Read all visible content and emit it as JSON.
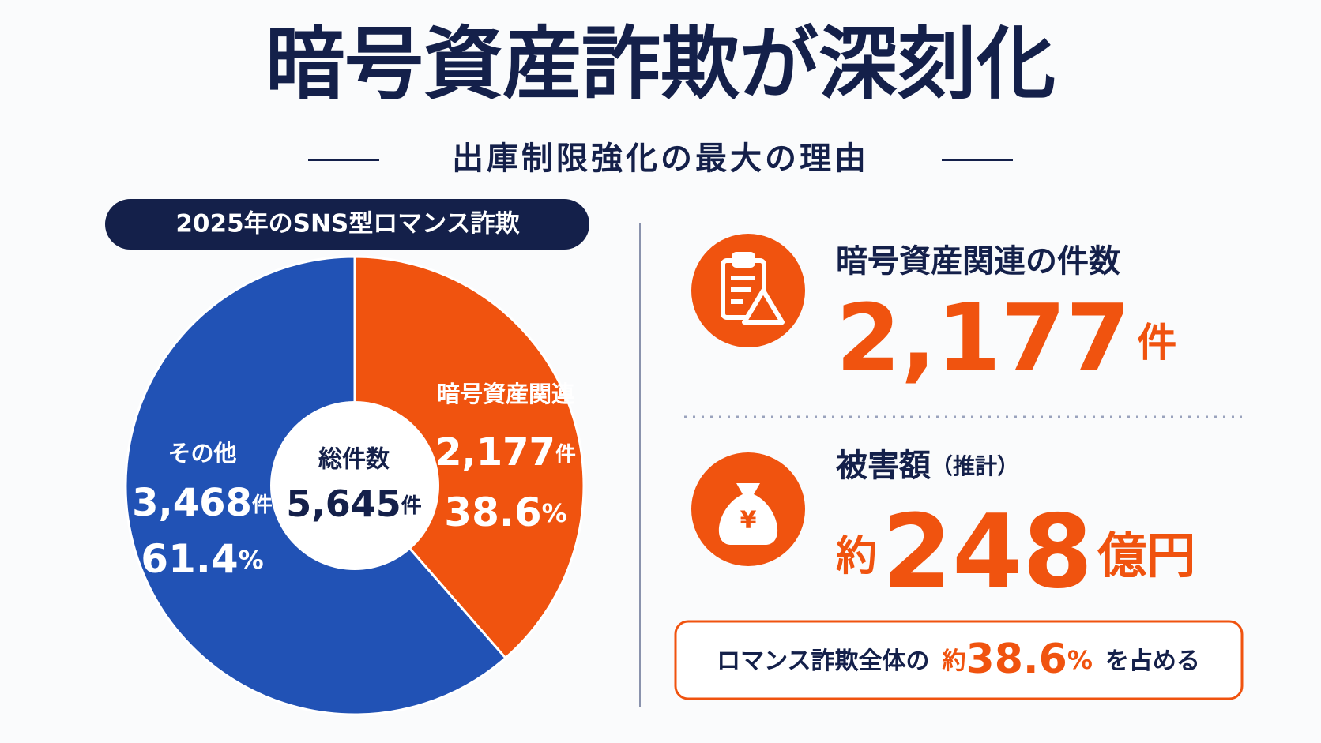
{
  "title": "暗号資産詐欺が深刻化",
  "subtitle": "出庫制限強化の最大の理由",
  "chart_data": {
    "type": "pie",
    "title": "2025年のSNS型ロマンス詐欺",
    "categories": [
      "暗号資産関連",
      "その他"
    ],
    "values": [
      2177,
      3468
    ],
    "value_labels": [
      "2,177",
      "3,468"
    ],
    "unit": "件",
    "colors": [
      "#f0530f",
      "#2152b5"
    ],
    "percents": [
      38.6,
      61.4
    ],
    "percent_unit": "%",
    "total_title": "総件数",
    "total": {
      "value": 5645,
      "label": "5,645"
    }
  },
  "stats": {
    "cases": {
      "title": "暗号資産関連の件数",
      "value": {
        "value": 2177,
        "label": "2,177"
      },
      "unit": "件"
    },
    "damage": {
      "title": "被害額",
      "note": "（推計）",
      "prefix": "約",
      "value": 248,
      "unit": "億円"
    },
    "share": {
      "lead": "ロマンス詐欺全体の",
      "prefix": "約",
      "value": 38.6,
      "unit": "%",
      "tail": "を占める"
    }
  }
}
